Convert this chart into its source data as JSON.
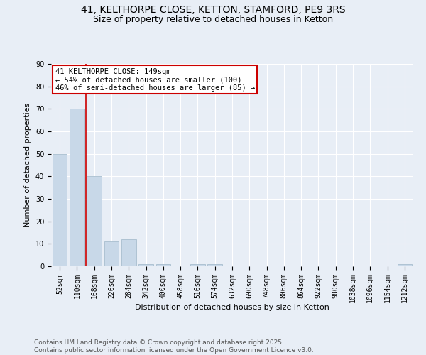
{
  "title_line1": "41, KELTHORPE CLOSE, KETTON, STAMFORD, PE9 3RS",
  "title_line2": "Size of property relative to detached houses in Ketton",
  "xlabel": "Distribution of detached houses by size in Ketton",
  "ylabel": "Number of detached properties",
  "categories": [
    "52sqm",
    "110sqm",
    "168sqm",
    "226sqm",
    "284sqm",
    "342sqm",
    "400sqm",
    "458sqm",
    "516sqm",
    "574sqm",
    "632sqm",
    "690sqm",
    "748sqm",
    "806sqm",
    "864sqm",
    "922sqm",
    "980sqm",
    "1038sqm",
    "1096sqm",
    "1154sqm",
    "1212sqm"
  ],
  "values": [
    50,
    70,
    40,
    11,
    12,
    1,
    1,
    0,
    1,
    1,
    0,
    0,
    0,
    0,
    0,
    0,
    0,
    0,
    0,
    0,
    1
  ],
  "bar_color": "#c8d8e8",
  "bar_edge_color": "#a8bece",
  "background_color": "#e8eef6",
  "grid_color": "#ffffff",
  "annotation_box_text": "41 KELTHORPE CLOSE: 149sqm\n← 54% of detached houses are smaller (100)\n46% of semi-detached houses are larger (85) →",
  "annotation_box_color": "#ffffff",
  "annotation_box_edge_color": "#cc0000",
  "vline_color": "#cc0000",
  "vline_x_index": 1,
  "ylim": [
    0,
    90
  ],
  "yticks": [
    0,
    10,
    20,
    30,
    40,
    50,
    60,
    70,
    80,
    90
  ],
  "footer": "Contains HM Land Registry data © Crown copyright and database right 2025.\nContains public sector information licensed under the Open Government Licence v3.0.",
  "title_fontsize": 10,
  "subtitle_fontsize": 9,
  "axis_label_fontsize": 8,
  "tick_fontsize": 7,
  "annotation_fontsize": 7.5,
  "footer_fontsize": 6.5
}
